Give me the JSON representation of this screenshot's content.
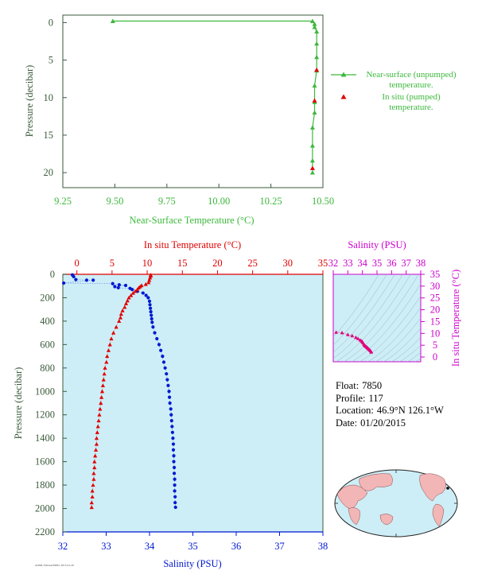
{
  "chart_data": [
    {
      "type": "line",
      "panel": "near-surface",
      "xlabel": "Near-Surface Temperature (°C)",
      "ylabel": "Pressure (decibar)",
      "xlim": [
        9.25,
        10.5
      ],
      "ylim": [
        22,
        -1
      ],
      "xticks": [
        "9.25",
        "9.50",
        "9.75",
        "10.00",
        "10.25",
        "10.50"
      ],
      "yticks": [
        "0",
        "5",
        "10",
        "15",
        "20"
      ],
      "series": [
        {
          "name": "Near-surface (unpumped) temperature.",
          "color": "#3cb83c",
          "marker": "triangle",
          "points": [
            [
              9.49,
              -0.2
            ],
            [
              10.45,
              -0.2
            ],
            [
              10.46,
              0.2
            ],
            [
              10.46,
              0.6
            ],
            [
              10.47,
              1.2
            ],
            [
              10.47,
              2.8
            ],
            [
              10.47,
              4.6
            ],
            [
              10.47,
              6.4
            ],
            [
              10.46,
              8.4
            ],
            [
              10.46,
              10.6
            ],
            [
              10.46,
              12.0
            ],
            [
              10.45,
              14.0
            ],
            [
              10.45,
              16.4
            ],
            [
              10.45,
              18.4
            ],
            [
              10.45,
              20.0
            ]
          ]
        },
        {
          "name": "In situ (pumped) temperature.",
          "color": "#e00000",
          "marker": "triangle",
          "points": [
            [
              10.47,
              6.3
            ],
            [
              10.46,
              10.4
            ],
            [
              10.45,
              19.4
            ]
          ]
        }
      ],
      "legend": "right"
    },
    {
      "type": "scatter",
      "panel": "profile",
      "title": "In situ Temperature (°C)",
      "xlabel": "Salinity (PSU)",
      "ylabel": "Pressure (decibar)",
      "ylim": [
        2200,
        0
      ],
      "salinity_lim": [
        32,
        38
      ],
      "temperature_lim": [
        -2,
        35
      ],
      "salinity_ticks": [
        "32",
        "33",
        "34",
        "35",
        "36",
        "37",
        "38"
      ],
      "temperature_ticks": [
        "0",
        "5",
        "10",
        "15",
        "20",
        "25",
        "30",
        "35"
      ],
      "pressure_ticks": [
        "0",
        "200",
        "400",
        "600",
        "800",
        "1000",
        "1200",
        "1400",
        "1600",
        "1800",
        "2000",
        "2200"
      ],
      "temperature_color": "#e00000",
      "salinity_color": "#0018d0",
      "background": "#cdeef7",
      "temperature": {
        "values": [
          [
            10.5,
            5
          ],
          [
            10.5,
            15
          ],
          [
            10.4,
            30
          ],
          [
            10.3,
            50
          ],
          [
            10.2,
            70
          ],
          [
            9.8,
            85
          ],
          [
            9.2,
            95
          ],
          [
            9.0,
            105
          ],
          [
            8.8,
            115
          ],
          [
            8.6,
            130
          ],
          [
            8.3,
            145
          ],
          [
            8.0,
            160
          ],
          [
            7.7,
            180
          ],
          [
            7.4,
            200
          ],
          [
            7.2,
            225
          ],
          [
            7.0,
            250
          ],
          [
            6.8,
            280
          ],
          [
            6.5,
            310
          ],
          [
            6.3,
            340
          ],
          [
            6.2,
            370
          ],
          [
            6.0,
            400
          ],
          [
            5.6,
            450
          ],
          [
            5.2,
            500
          ],
          [
            4.9,
            550
          ],
          [
            4.7,
            600
          ],
          [
            4.5,
            650
          ],
          [
            4.3,
            700
          ],
          [
            4.2,
            750
          ],
          [
            4.0,
            800
          ],
          [
            3.9,
            850
          ],
          [
            3.8,
            900
          ],
          [
            3.7,
            950
          ],
          [
            3.6,
            1000
          ],
          [
            3.5,
            1050
          ],
          [
            3.4,
            1100
          ],
          [
            3.3,
            1150
          ],
          [
            3.2,
            1200
          ],
          [
            3.1,
            1250
          ],
          [
            3.0,
            1300
          ],
          [
            2.9,
            1350
          ],
          [
            2.8,
            1400
          ],
          [
            2.8,
            1450
          ],
          [
            2.7,
            1500
          ],
          [
            2.6,
            1550
          ],
          [
            2.5,
            1600
          ],
          [
            2.5,
            1650
          ],
          [
            2.4,
            1700
          ],
          [
            2.4,
            1750
          ],
          [
            2.3,
            1800
          ],
          [
            2.2,
            1850
          ],
          [
            2.2,
            1900
          ],
          [
            2.1,
            1950
          ],
          [
            2.1,
            1990
          ]
        ]
      },
      "salinity": {
        "values": [
          [
            32.22,
            5
          ],
          [
            32.25,
            20
          ],
          [
            32.3,
            45
          ],
          [
            32.55,
            50
          ],
          [
            32.7,
            50
          ],
          [
            32.02,
            75
          ],
          [
            33.15,
            80
          ],
          [
            33.3,
            90
          ],
          [
            33.45,
            95
          ],
          [
            33.2,
            105
          ],
          [
            33.28,
            115
          ],
          [
            33.55,
            120
          ],
          [
            33.6,
            130
          ],
          [
            33.72,
            145
          ],
          [
            33.85,
            160
          ],
          [
            33.92,
            180
          ],
          [
            33.97,
            200
          ],
          [
            34.0,
            230
          ],
          [
            34.01,
            260
          ],
          [
            34.02,
            290
          ],
          [
            34.03,
            320
          ],
          [
            34.04,
            350
          ],
          [
            34.05,
            380
          ],
          [
            34.06,
            410
          ],
          [
            34.08,
            450
          ],
          [
            34.12,
            500
          ],
          [
            34.17,
            550
          ],
          [
            34.22,
            600
          ],
          [
            34.26,
            650
          ],
          [
            34.3,
            700
          ],
          [
            34.33,
            750
          ],
          [
            34.36,
            800
          ],
          [
            34.39,
            850
          ],
          [
            34.41,
            900
          ],
          [
            34.43,
            950
          ],
          [
            34.45,
            1000
          ],
          [
            34.46,
            1050
          ],
          [
            34.47,
            1100
          ],
          [
            34.49,
            1150
          ],
          [
            34.5,
            1200
          ],
          [
            34.51,
            1250
          ],
          [
            34.52,
            1300
          ],
          [
            34.53,
            1350
          ],
          [
            34.54,
            1400
          ],
          [
            34.55,
            1450
          ],
          [
            34.55,
            1500
          ],
          [
            34.56,
            1550
          ],
          [
            34.56,
            1600
          ],
          [
            34.57,
            1650
          ],
          [
            34.57,
            1700
          ],
          [
            34.58,
            1750
          ],
          [
            34.58,
            1800
          ],
          [
            34.58,
            1850
          ],
          [
            34.59,
            1900
          ],
          [
            34.59,
            1950
          ],
          [
            34.6,
            1990
          ]
        ]
      }
    },
    {
      "type": "scatter",
      "panel": "ts-diagram",
      "title": "Salinity (PSU)",
      "ylabel": "In situ Temperature (°C)",
      "xlim": [
        32,
        38
      ],
      "ylim": [
        -2,
        35
      ],
      "xticks": [
        "32",
        "33",
        "34",
        "35",
        "36",
        "37",
        "38"
      ],
      "yticks": [
        "0",
        "5",
        "10",
        "15",
        "20",
        "25",
        "30",
        "35"
      ],
      "color": "#e0007a",
      "points": [
        [
          32.2,
          10.5
        ],
        [
          32.6,
          10.3
        ],
        [
          33.0,
          9.5
        ],
        [
          33.3,
          9.0
        ],
        [
          33.55,
          8.3
        ],
        [
          33.7,
          7.8
        ],
        [
          33.85,
          7.2
        ],
        [
          33.95,
          6.8
        ],
        [
          34.0,
          6.4
        ],
        [
          34.05,
          6.0
        ],
        [
          34.1,
          5.4
        ],
        [
          34.15,
          5.0
        ],
        [
          34.2,
          4.7
        ],
        [
          34.25,
          4.4
        ],
        [
          34.3,
          4.2
        ],
        [
          34.35,
          3.9
        ],
        [
          34.4,
          3.6
        ],
        [
          34.45,
          3.3
        ],
        [
          34.5,
          3.0
        ],
        [
          34.55,
          2.7
        ],
        [
          34.6,
          2.3
        ],
        [
          34.6,
          2.1
        ]
      ]
    }
  ],
  "info": {
    "float_label": "Float:",
    "float_value": "7850",
    "profile_label": "Profile:",
    "profile_value": "117",
    "location_label": "Location:",
    "location_value": "46.9°N  126.1°W",
    "date_label": "Date:",
    "date_value": "01/20/2015"
  },
  "footer_text": "AOML/NOAA/PMEL 2015-01-20",
  "colors": {
    "axis_green": "#3a5a3a",
    "label_green": "#3cb83c",
    "red": "#e00000",
    "blue": "#0018d0",
    "magenta": "#cc00cc",
    "plot_bg": "#cdeef7"
  }
}
